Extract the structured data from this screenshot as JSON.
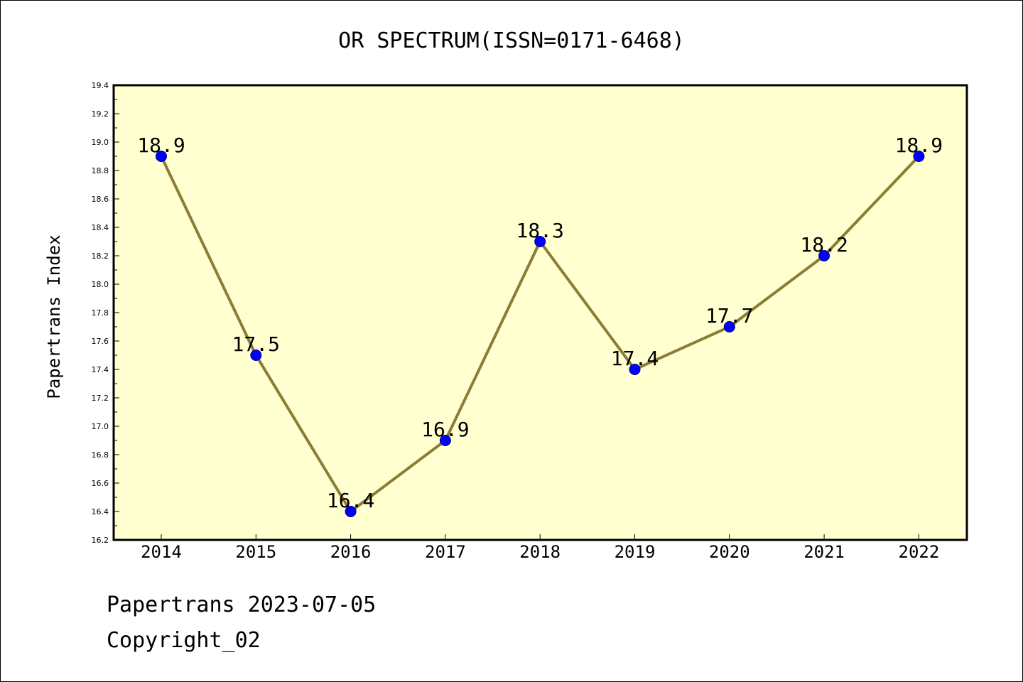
{
  "chart_data": {
    "type": "line",
    "title": "OR SPECTRUM(ISSN=0171-6468)",
    "xlabel": "",
    "ylabel": "Papertrans Index",
    "categories": [
      "2014",
      "2015",
      "2016",
      "2017",
      "2018",
      "2019",
      "2020",
      "2021",
      "2022"
    ],
    "series": [
      {
        "values": [
          18.9,
          17.5,
          16.4,
          16.9,
          18.3,
          17.4,
          17.7,
          18.2,
          18.9
        ],
        "data_labels": [
          "18.9",
          "17.5",
          "16.4",
          "16.9",
          "18.3",
          "17.4",
          "17.7",
          "18.2",
          "18.9"
        ]
      }
    ],
    "ylim": [
      16.2,
      19.4
    ],
    "yticks": [
      "16.2",
      "16.4",
      "16.6",
      "16.8",
      "17.0",
      "17.2",
      "17.4",
      "17.6",
      "17.8",
      "18.0",
      "18.2",
      "18.4",
      "18.6",
      "18.8",
      "19.0",
      "19.2",
      "19.4"
    ],
    "grid": false,
    "legend": "none",
    "colors": {
      "plot_background": "#ffffd0",
      "line": "#8b7d35",
      "marker": "#0000ff",
      "marker_edge": "#00008b"
    }
  },
  "footer": {
    "line1": "Papertrans 2023-07-05",
    "line2": "Copyright_02"
  }
}
